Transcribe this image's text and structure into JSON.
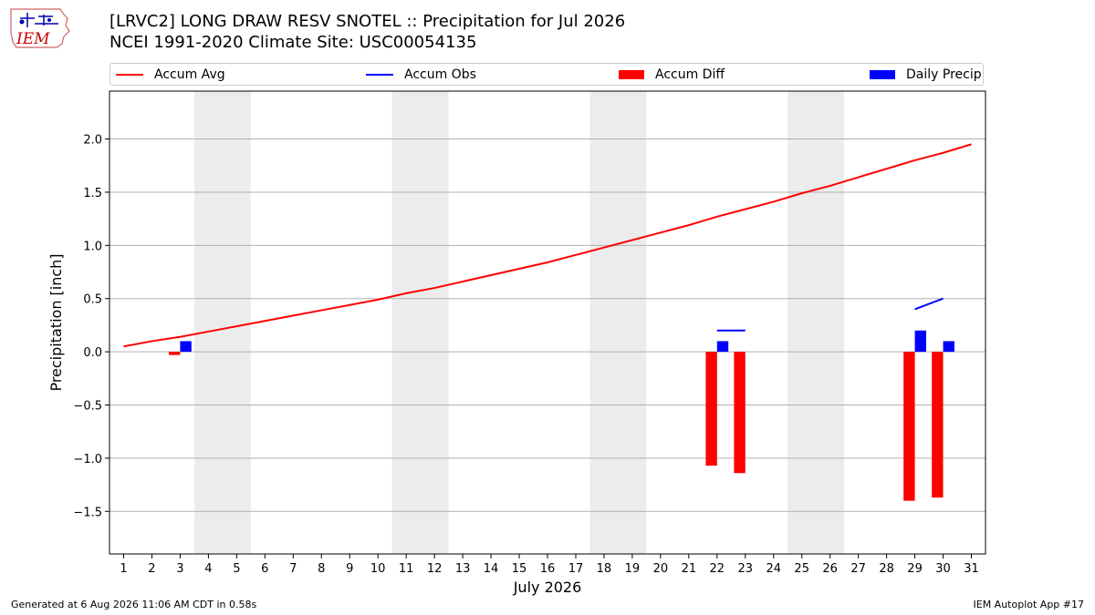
{
  "header": {
    "title_line1": "[LRVC2] LONG DRAW RESV SNOTEL :: Precipitation for Jul 2026",
    "title_line2": "NCEI 1991-2020 Climate Site: USC00054135"
  },
  "logo": {
    "text": "IEM",
    "color": "#cc0000"
  },
  "legend": [
    {
      "label": "Accum Avg",
      "kind": "line",
      "color": "#ff0000"
    },
    {
      "label": "Accum Obs",
      "kind": "line",
      "color": "#0000ff"
    },
    {
      "label": "Accum Diff",
      "kind": "rect",
      "color": "#ff0000"
    },
    {
      "label": "Daily Precip",
      "kind": "rect",
      "color": "#0000ff"
    }
  ],
  "footer": {
    "left": "Generated at 6 Aug 2026 11:06 AM CDT in 0.58s",
    "right": "IEM Autoplot App #17"
  },
  "chart_data": {
    "type": "bar",
    "xlabel": "July 2026",
    "ylabel": "Precipitation [inch]",
    "xlim": [
      0.5,
      31.5
    ],
    "ylim": [
      -1.9,
      2.45
    ],
    "x_ticks": [
      1,
      2,
      3,
      4,
      5,
      6,
      7,
      8,
      9,
      10,
      11,
      12,
      13,
      14,
      15,
      16,
      17,
      18,
      19,
      20,
      21,
      22,
      23,
      24,
      25,
      26,
      27,
      28,
      29,
      30,
      31
    ],
    "y_ticks": [
      -1.5,
      -1.0,
      -0.5,
      0.0,
      0.5,
      1.0,
      1.5,
      2.0
    ],
    "y_tick_labels": [
      "−1.5",
      "−1.0",
      "−0.5",
      "0.0",
      "0.5",
      "1.0",
      "1.5",
      "2.0"
    ],
    "grid": "horizontal",
    "weekend_bands": [
      [
        4,
        5
      ],
      [
        11,
        12
      ],
      [
        18,
        19
      ],
      [
        25,
        26
      ]
    ],
    "accum_avg": {
      "name": "Accum Avg",
      "color": "#ff0000",
      "x": [
        1,
        2,
        3,
        4,
        5,
        6,
        7,
        8,
        9,
        10,
        11,
        12,
        13,
        14,
        15,
        16,
        17,
        18,
        19,
        20,
        21,
        22,
        23,
        24,
        25,
        26,
        27,
        28,
        29,
        30,
        31
      ],
      "y": [
        0.05,
        0.1,
        0.14,
        0.19,
        0.24,
        0.29,
        0.34,
        0.39,
        0.44,
        0.49,
        0.55,
        0.6,
        0.66,
        0.72,
        0.78,
        0.84,
        0.91,
        0.98,
        1.05,
        1.12,
        1.19,
        1.27,
        1.34,
        1.41,
        1.49,
        1.56,
        1.64,
        1.72,
        1.8,
        1.87,
        1.95
      ]
    },
    "accum_obs": {
      "name": "Accum Obs",
      "color": "#0000ff",
      "segments": [
        {
          "x": [
            22,
            23
          ],
          "y": [
            0.2,
            0.2
          ]
        },
        {
          "x": [
            29,
            30
          ],
          "y": [
            0.4,
            0.5
          ]
        }
      ]
    },
    "accum_diff": {
      "name": "Accum Diff",
      "color": "#ff0000",
      "x": [
        3,
        22,
        23,
        29,
        30
      ],
      "y": [
        -0.03,
        -1.07,
        -1.14,
        -1.4,
        -1.37
      ]
    },
    "daily_precip": {
      "name": "Daily Precip",
      "color": "#0000ff",
      "x": [
        3,
        22,
        29,
        30
      ],
      "y": [
        0.1,
        0.1,
        0.2,
        0.1
      ]
    }
  }
}
